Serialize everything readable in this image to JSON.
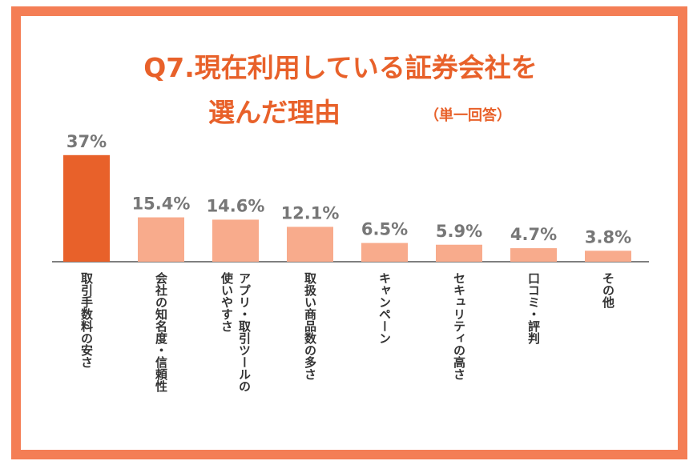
{
  "chart_data": {
    "type": "bar",
    "title_lines": [
      "Q7.現在利用している証券会社を",
      "選んだ理由"
    ],
    "subtitle": "（単一回答）",
    "categories": [
      "取引手数料の安さ",
      "会社の知名度・信頼性",
      "アプリ・取引ツールの\n使いやすさ",
      "取扱い商品数の多さ",
      "キャンペーン",
      "セキュリティの高さ",
      "口コミ・評判",
      "その他"
    ],
    "values": [
      37,
      15.4,
      14.6,
      12.1,
      6.5,
      5.9,
      4.7,
      3.8
    ],
    "value_labels": [
      "37%",
      "15.4%",
      "14.6%",
      "12.1%",
      "6.5%",
      "5.9%",
      "4.7%",
      "3.8%"
    ],
    "colors": [
      "#e8612a",
      "#f8ab8c",
      "#f8ab8c",
      "#f8ab8c",
      "#f8ab8c",
      "#f8ab8c",
      "#f8ab8c",
      "#f8ab8c"
    ]
  }
}
